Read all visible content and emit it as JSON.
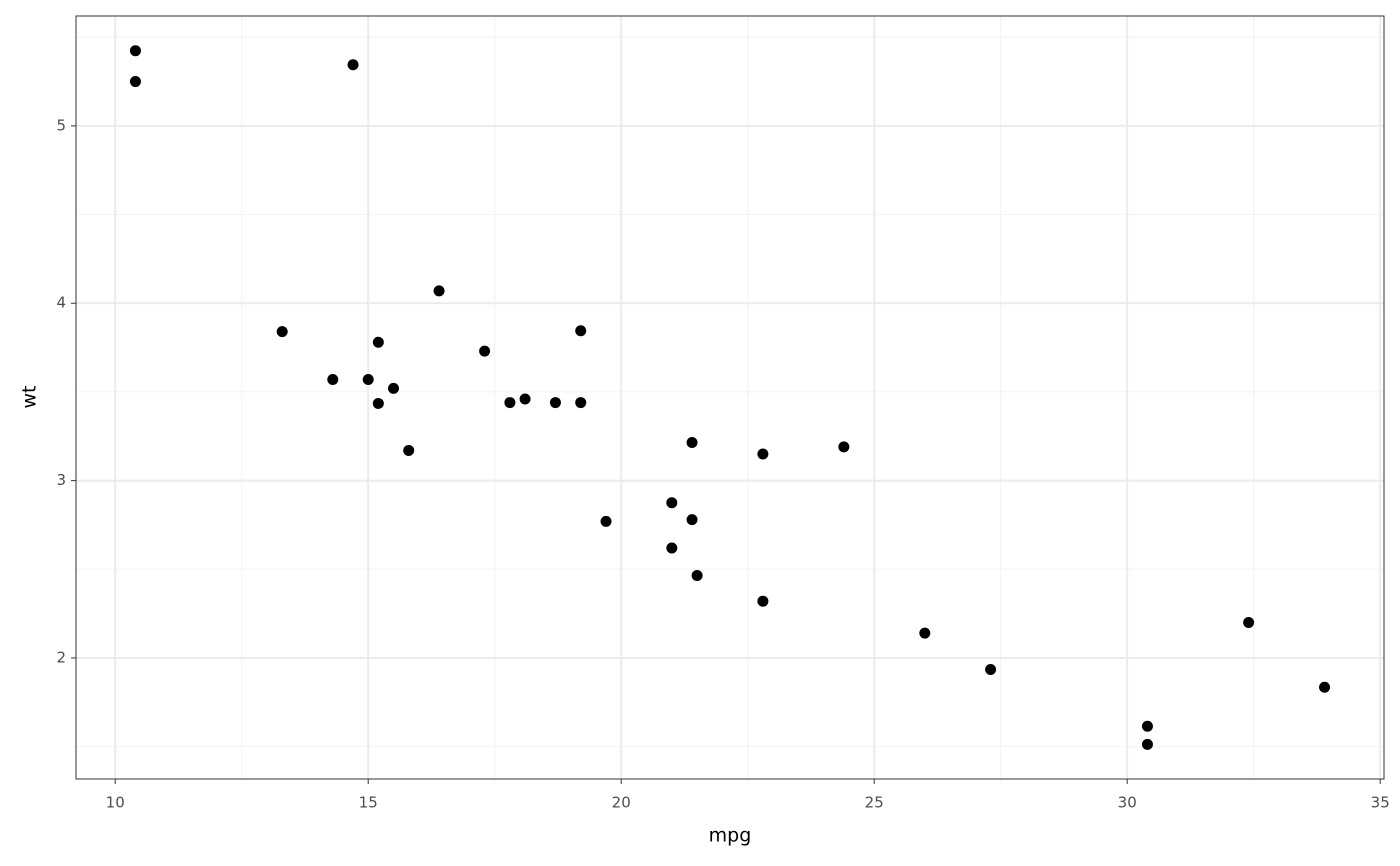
{
  "chart_data": {
    "type": "scatter",
    "x_label": "mpg",
    "y_label": "wt",
    "x": [
      21.0,
      21.0,
      22.8,
      21.4,
      18.7,
      18.1,
      14.3,
      24.4,
      22.8,
      19.2,
      17.8,
      16.4,
      17.3,
      15.2,
      10.4,
      10.4,
      14.7,
      32.4,
      30.4,
      33.9,
      21.5,
      15.5,
      15.2,
      13.3,
      19.2,
      27.3,
      26.0,
      30.4,
      15.8,
      19.7,
      15.0,
      21.4
    ],
    "values": [
      2.62,
      2.875,
      2.32,
      3.215,
      3.44,
      3.46,
      3.57,
      3.19,
      3.15,
      3.44,
      3.44,
      4.07,
      3.73,
      3.78,
      5.25,
      5.424,
      5.345,
      2.2,
      1.615,
      1.835,
      2.465,
      3.52,
      3.435,
      3.84,
      3.845,
      1.935,
      2.14,
      1.513,
      3.17,
      2.77,
      3.57,
      2.78
    ],
    "color": "#000000",
    "xlim": [
      9.225,
      35.075
    ],
    "xticks": [
      10,
      15,
      20,
      25,
      30,
      35
    ],
    "xminor": [
      12.5,
      17.5,
      22.5,
      27.5,
      32.5
    ],
    "ylim": [
      1.3175,
      5.6196
    ],
    "yticks": [
      2,
      3,
      4,
      5
    ],
    "yminor": [
      1.5,
      2.5,
      3.5,
      4.5,
      5.5
    ],
    "grid": true
  }
}
